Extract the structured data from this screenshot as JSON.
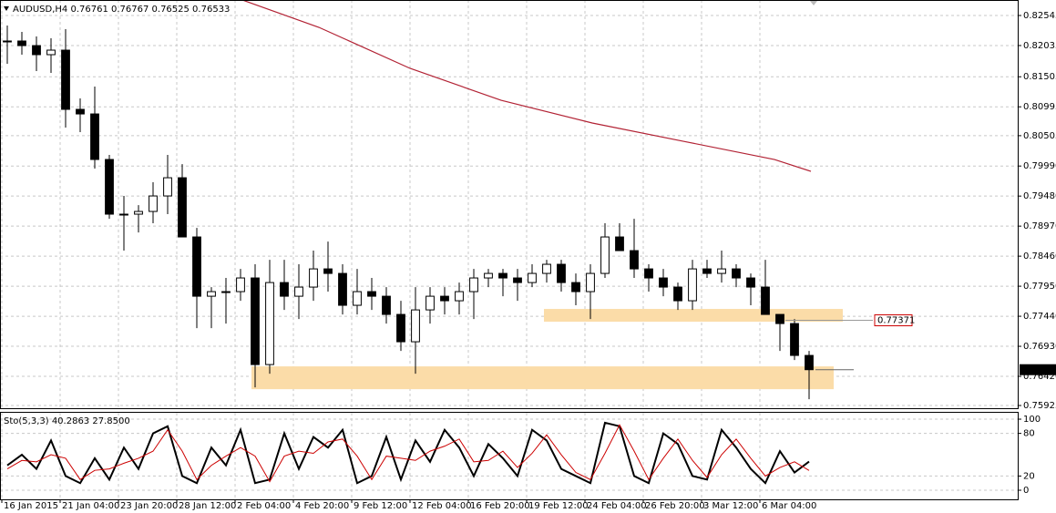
{
  "chart_data": [
    {
      "type": "candlestick",
      "title": "AUDUSD,H4  0.76761 0.76767 0.76525 0.76533",
      "x": [
        1.5,
        5.5,
        9.5,
        13.5,
        17.5,
        21.5,
        25.5,
        29.5,
        33.5,
        37.5,
        41.5,
        45.5,
        49.5,
        53.5,
        57.5,
        61.5,
        65.5,
        69.5,
        73.5,
        77.5,
        81.5,
        85.5,
        89.5,
        93.5,
        97.5,
        101.5,
        105.5,
        109.5,
        113.5,
        117.5,
        121.5,
        125.5,
        129.5,
        133.5,
        137.5,
        141.5,
        145.5,
        149.5,
        153.5,
        157.5,
        161.5,
        165.5,
        169.5,
        173.5,
        177.5,
        181.5,
        185.5,
        189.5,
        193.5,
        197.5,
        201.5,
        205.5,
        209.5,
        213.5,
        217.5,
        221.5
      ],
      "open": [
        0.82112,
        0.82112,
        0.82034,
        0.8188,
        0.81957,
        0.80952,
        0.80874,
        0.80101,
        0.79173,
        0.79173,
        0.79219,
        0.79482,
        0.79791,
        0.78786,
        0.7778,
        0.77858,
        0.77858,
        0.7809,
        0.7662,
        0.78012,
        0.7778,
        0.77935,
        0.78244,
        0.78167,
        0.77626,
        0.77858,
        0.7778,
        0.77471,
        0.77007,
        0.77548,
        0.7778,
        0.77703,
        0.77858,
        0.7809,
        0.78167,
        0.7809,
        0.78012,
        0.78167,
        0.78322,
        0.78012,
        0.77858,
        0.78167,
        0.78786,
        0.78554,
        0.78244,
        0.7809,
        0.77935,
        0.77703,
        0.78244,
        0.78167,
        0.78244,
        0.7809,
        0.77935,
        0.77471,
        0.77316,
        0.76775
      ],
      "high": [
        0.82375,
        0.82267,
        0.82189,
        0.82158,
        0.82313,
        0.81137,
        0.81338,
        0.80178,
        0.79482,
        0.79327,
        0.79714,
        0.80178,
        0.80023,
        0.7894,
        0.77935,
        0.7809,
        0.78244,
        0.78322,
        0.78399,
        0.78399,
        0.78322,
        0.78554,
        0.78708,
        0.78322,
        0.78244,
        0.7809,
        0.77935,
        0.77703,
        0.77935,
        0.77935,
        0.77935,
        0.78012,
        0.78244,
        0.78244,
        0.78244,
        0.78244,
        0.78322,
        0.78399,
        0.78399,
        0.78167,
        0.78322,
        0.79018,
        0.79018,
        0.79095,
        0.78322,
        0.78244,
        0.78012,
        0.78399,
        0.78399,
        0.78554,
        0.78322,
        0.78167,
        0.78399,
        0.77471,
        0.77393,
        0.76852
      ],
      "low": [
        0.81725,
        0.8188,
        0.81601,
        0.8157,
        0.80642,
        0.80565,
        0.79946,
        0.79095,
        0.78554,
        0.78863,
        0.79018,
        0.79173,
        0.78786,
        0.77239,
        0.77239,
        0.77316,
        0.77703,
        0.76233,
        0.76465,
        0.77548,
        0.77393,
        0.77703,
        0.77858,
        0.77471,
        0.77471,
        0.77548,
        0.77316,
        0.76852,
        0.76465,
        0.77316,
        0.77471,
        0.77471,
        0.77393,
        0.77935,
        0.7778,
        0.77703,
        0.77935,
        0.78012,
        0.77858,
        0.77626,
        0.77393,
        0.7809,
        0.78554,
        0.7809,
        0.77858,
        0.7778,
        0.77548,
        0.77548,
        0.7809,
        0.78012,
        0.77935,
        0.77626,
        0.77471,
        0.76852,
        0.76697,
        0.76032
      ],
      "close": [
        0.82112,
        0.82034,
        0.8188,
        0.81957,
        0.80952,
        0.80874,
        0.80101,
        0.79173,
        0.79173,
        0.79219,
        0.79482,
        0.79791,
        0.78786,
        0.7778,
        0.77858,
        0.77858,
        0.7809,
        0.7662,
        0.78012,
        0.7778,
        0.77935,
        0.78244,
        0.78167,
        0.77626,
        0.77858,
        0.7778,
        0.77471,
        0.77007,
        0.77548,
        0.7778,
        0.77703,
        0.77858,
        0.7809,
        0.78167,
        0.7809,
        0.78012,
        0.78167,
        0.78322,
        0.78012,
        0.77858,
        0.78167,
        0.78786,
        0.78554,
        0.78244,
        0.7809,
        0.77935,
        0.77703,
        0.78244,
        0.78167,
        0.78244,
        0.7809,
        0.77935,
        0.77471,
        0.77316,
        0.76775,
        0.76533
      ],
      "up_color": "#ffffff",
      "down_color": "#000000",
      "candle_color": "#000000",
      "ma": {
        "color": "#b22234",
        "x": [
          66,
          87,
          112,
          137,
          162,
          187,
          212,
          222
        ],
        "values": [
          0.82808,
          0.82344,
          0.81648,
          0.81106,
          0.8072,
          0.8041,
          0.80101,
          0.799
        ]
      },
      "zones": [
        {
          "color": "#fbdca8",
          "x": [
            68.5,
            228.25
          ],
          "y": [
            0.76202,
            0.76589
          ]
        },
        {
          "color": "#fbdca8",
          "x": [
            148.75,
            230.75
          ],
          "y": [
            0.77347,
            0.77564
          ]
        }
      ],
      "price_lines": [
        {
          "value": 0.77371,
          "x": [
            215,
            239
          ],
          "color": "#cc0000"
        },
        {
          "value": 0.76533,
          "x": [
            223.25,
            233.75
          ],
          "color": "#000000"
        }
      ],
      "xlim": [
        -0.5,
        278.75
      ],
      "ylim": [
        0.75879,
        0.82808
      ],
      "xticks": [
        {
          "value": 0,
          "label": "16 Jan 2015"
        },
        {
          "value": 16,
          "label": "21 Jan 04:00"
        },
        {
          "value": 32,
          "label": "23 Jan 20:00"
        },
        {
          "value": 48,
          "label": "28 Jan 12:00"
        },
        {
          "value": 64,
          "label": "2 Feb 04:00"
        },
        {
          "value": 80,
          "label": "4 Feb 20:00"
        },
        {
          "value": 96,
          "label": "9 Feb 12:00"
        },
        {
          "value": 112,
          "label": "12 Feb 04:00"
        },
        {
          "value": 128,
          "label": "16 Feb 20:00"
        },
        {
          "value": 144,
          "label": "19 Feb 12:00"
        },
        {
          "value": 160,
          "label": "24 Feb 04:00"
        },
        {
          "value": 176,
          "label": "26 Feb 20:00"
        },
        {
          "value": 192,
          "label": "3 Mar 12:00"
        },
        {
          "value": 208,
          "label": "6 Mar 04:00"
        }
      ],
      "yticks": [
        0.82545,
        0.82035,
        0.81505,
        0.80995,
        0.80505,
        {
          "value": 0.7999,
          "label": "0.79990"
        },
        {
          "value": 0.7948,
          "label": "0.79480"
        },
        {
          "value": 0.7897,
          "label": "0.78970"
        },
        {
          "value": 0.7846,
          "label": "0.78460"
        },
        {
          "value": 0.7795,
          "label": "0.77950"
        },
        {
          "value": 0.7744,
          "label": "0.77440"
        },
        {
          "value": 0.7693,
          "label": "0.76930"
        },
        {
          "value": 0.7642,
          "label": "0.76420"
        },
        0.75925
      ],
      "grid": true
    },
    {
      "type": "line",
      "title": "Sto(5,3,3) 40.2863 27.8500",
      "x": [
        1.5,
        5.5,
        9.5,
        13.5,
        17.5,
        21.5,
        25.5,
        29.5,
        33.5,
        37.5,
        41.5,
        45.5,
        49.5,
        53.5,
        57.5,
        61.5,
        65.5,
        69.5,
        73.5,
        77.5,
        81.5,
        85.5,
        89.5,
        93.5,
        97.5,
        101.5,
        105.5,
        109.5,
        113.5,
        117.5,
        121.5,
        125.5,
        129.5,
        133.5,
        137.5,
        141.5,
        145.5,
        149.5,
        153.5,
        157.5,
        161.5,
        165.5,
        169.5,
        173.5,
        177.5,
        181.5,
        185.5,
        189.5,
        193.5,
        197.5,
        201.5,
        205.5,
        209.5,
        213.5,
        217.5,
        221.5
      ],
      "series": [
        {
          "color": "#000000",
          "values": [
            35,
            50,
            30,
            70,
            20,
            10,
            45,
            15,
            60,
            30,
            80,
            90,
            20,
            10,
            60,
            35,
            85,
            10,
            15,
            80,
            30,
            75,
            60,
            85,
            10,
            20,
            75,
            15,
            70,
            40,
            85,
            60,
            20,
            65,
            45,
            20,
            85,
            70,
            30,
            20,
            10,
            95,
            90,
            20,
            10,
            80,
            65,
            20,
            15,
            85,
            60,
            30,
            10,
            55,
            25,
            40.2863
          ]
        },
        {
          "color": "#cc0000",
          "values": [
            30,
            42,
            40,
            50,
            45,
            15,
            28,
            30,
            38,
            45,
            55,
            85,
            55,
            15,
            35,
            48,
            60,
            48,
            12,
            48,
            55,
            52,
            68,
            72,
            48,
            15,
            48,
            45,
            42,
            55,
            62,
            72,
            40,
            42,
            55,
            32,
            52,
            78,
            50,
            25,
            15,
            52,
            92,
            55,
            15,
            45,
            72,
            42,
            18,
            50,
            72,
            45,
            20,
            32,
            40,
            27.85
          ]
        }
      ],
      "xlim": [
        -0.5,
        278.75
      ],
      "ylim": [
        -12.8,
        109
      ],
      "yticks": [
        0,
        20,
        80,
        100
      ],
      "grid": true
    }
  ]
}
